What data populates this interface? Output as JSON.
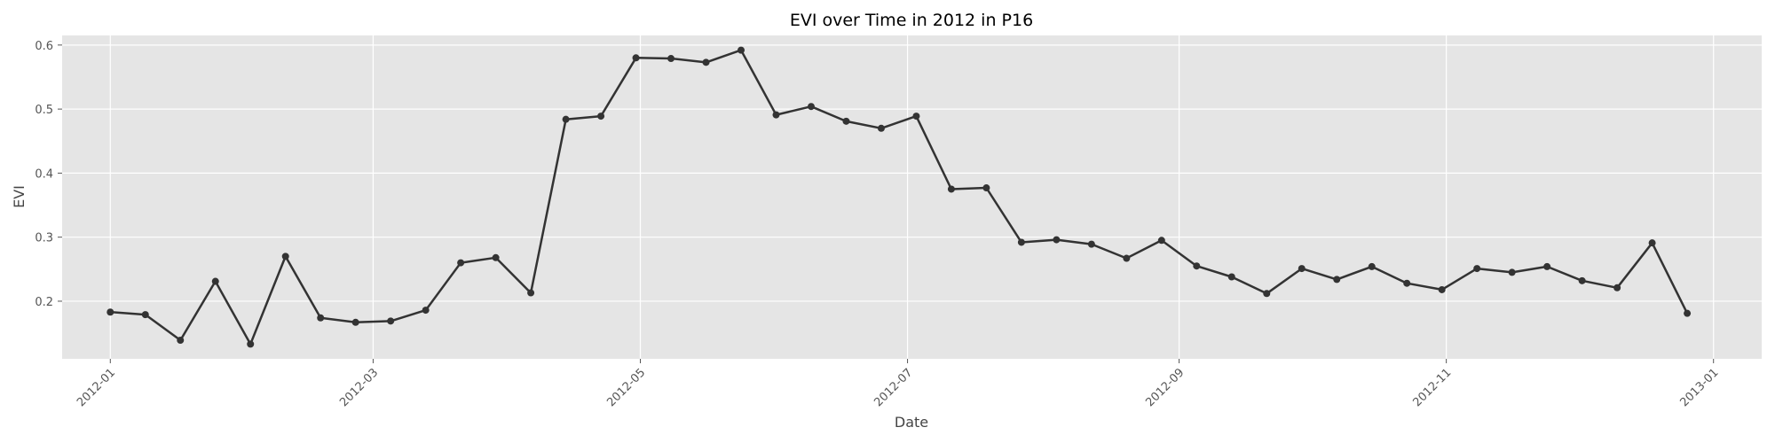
{
  "chart_data": {
    "type": "line",
    "title": "EVI over Time in 2012 in P16",
    "xlabel": "Date",
    "ylabel": "EVI",
    "xlim": [
      "2011-12-21",
      "2013-01-12"
    ],
    "ylim": [
      0.11,
      0.615
    ],
    "x_ticks": [
      "2012-01-01",
      "2012-03-01",
      "2012-05-01",
      "2012-07-01",
      "2012-09-01",
      "2012-11-01",
      "2013-01-01"
    ],
    "x_tick_labels": [
      "2012-01",
      "2012-03",
      "2012-05",
      "2012-07",
      "2012-09",
      "2012-11",
      "2013-01"
    ],
    "y_ticks": [
      0.2,
      0.3,
      0.4,
      0.5,
      0.6
    ],
    "y_tick_labels": [
      "0.2",
      "0.3",
      "0.4",
      "0.5",
      "0.6"
    ],
    "grid": true,
    "legend": "none",
    "colors": {
      "background": "#e5e5e5",
      "grid": "#ffffff",
      "line": "#333333"
    },
    "series": [
      {
        "x": [
          "2012-01-01",
          "2012-01-09",
          "2012-01-17",
          "2012-01-25",
          "2012-02-02",
          "2012-02-10",
          "2012-02-18",
          "2012-02-26",
          "2012-03-05",
          "2012-03-13",
          "2012-03-21",
          "2012-03-29",
          "2012-04-06",
          "2012-04-14",
          "2012-04-22",
          "2012-04-30",
          "2012-05-08",
          "2012-05-16",
          "2012-05-24",
          "2012-06-01",
          "2012-06-09",
          "2012-06-17",
          "2012-06-25",
          "2012-07-03",
          "2012-07-11",
          "2012-07-19",
          "2012-07-27",
          "2012-08-04",
          "2012-08-12",
          "2012-08-20",
          "2012-08-28",
          "2012-09-05",
          "2012-09-13",
          "2012-09-21",
          "2012-09-29",
          "2012-10-07",
          "2012-10-15",
          "2012-10-23",
          "2012-10-31",
          "2012-11-08",
          "2012-11-16",
          "2012-11-24",
          "2012-12-02",
          "2012-12-10",
          "2012-12-18",
          "2012-12-26"
        ],
        "values": [
          0.183,
          0.179,
          0.139,
          0.231,
          0.133,
          0.27,
          0.174,
          0.167,
          0.169,
          0.186,
          0.26,
          0.268,
          0.213,
          0.484,
          0.489,
          0.58,
          0.579,
          0.573,
          0.592,
          0.491,
          0.504,
          0.481,
          0.47,
          0.489,
          0.375,
          0.377,
          0.292,
          0.296,
          0.289,
          0.267,
          0.295,
          0.255,
          0.238,
          0.212,
          0.251,
          0.234,
          0.254,
          0.228,
          0.218,
          0.251,
          0.245,
          0.254,
          0.232,
          0.221,
          0.291,
          0.181
        ]
      }
    ]
  }
}
